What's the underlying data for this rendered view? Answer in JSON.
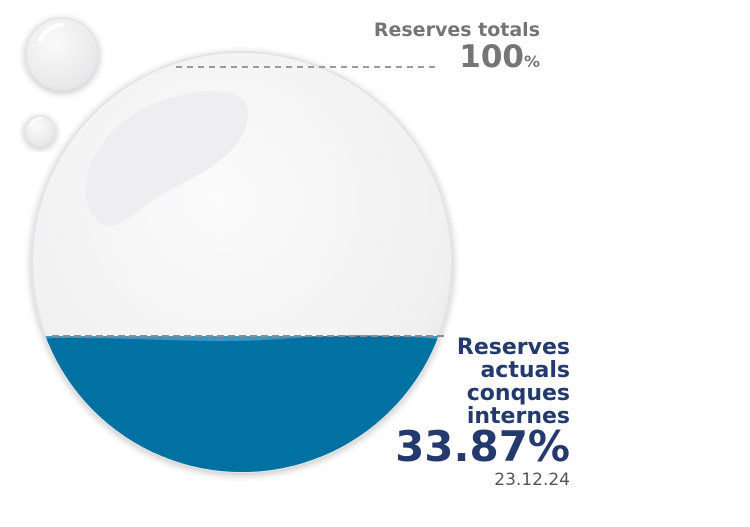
{
  "chart_data": {
    "type": "gauge",
    "total": {
      "label": "Reserves totals",
      "value": 100,
      "unit": "%"
    },
    "current": {
      "label_lines": [
        "Reserves",
        "actuals",
        "conques",
        "internes"
      ],
      "value": 33.87,
      "display": "33.87%",
      "date": "23.12.24"
    },
    "colors": {
      "fill": "#0071a1",
      "fill_light": "#3a96c2",
      "drop_bg": "#f3f3f4",
      "title_dark": "#243a6e",
      "title_grey": "#757575",
      "dashed": "#9a9a9a"
    }
  }
}
